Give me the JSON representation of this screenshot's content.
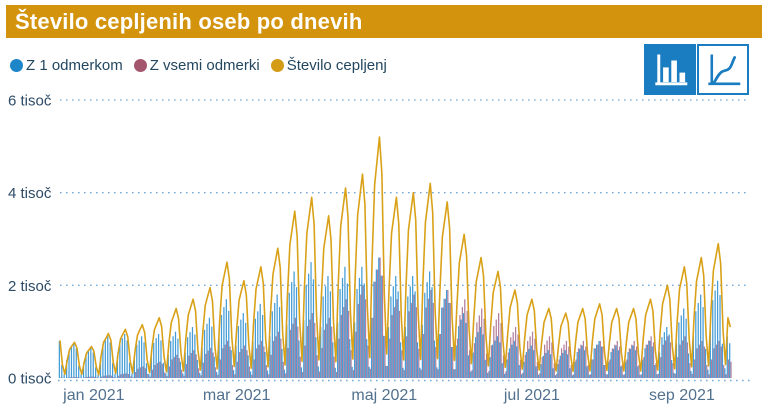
{
  "title": {
    "text": "Število cepljenih oseb po dnevih"
  },
  "legend": {
    "items": [
      {
        "label": "Z 1 odmerkom",
        "color": "#1C86C8"
      },
      {
        "label": "Z vsemi odmerki",
        "color": "#A4566E"
      },
      {
        "label": "Število cepljenj",
        "color": "#D49B15"
      }
    ]
  },
  "toolbar": {
    "buttons": [
      {
        "name": "bar-chart",
        "selected": true
      },
      {
        "name": "line-chart",
        "selected": false
      }
    ]
  },
  "colors": {
    "header_bg": "#D3930C",
    "header_text": "#FFFFFF",
    "grid": "#74A9D8",
    "axis_text": "#2E4B66",
    "month_text": "#51718E",
    "button_blue": "#1B7DC1"
  },
  "chart_data": {
    "type": "bar",
    "title": "Število cepljenih oseb po dnevih",
    "xlabel": "",
    "ylabel": "",
    "ylim": [
      0,
      6000
    ],
    "grid": "dotted-horizontal",
    "legend_position": "top-left",
    "x_start_date": "2021-01-01",
    "x_frequency": "daily",
    "y_ticks": [
      {
        "value": 0,
        "label": "0 tisoč"
      },
      {
        "value": 2000,
        "label": "2 tisoč"
      },
      {
        "value": 4000,
        "label": "4 tisoč"
      },
      {
        "value": 6000,
        "label": "6 tisoč"
      }
    ],
    "x_ticks": [
      {
        "label": "jan 2021",
        "day_index": 14
      },
      {
        "label": "mar 2021",
        "day_index": 73
      },
      {
        "label": "maj 2021",
        "day_index": 134
      },
      {
        "label": "jul 2021",
        "day_index": 195
      },
      {
        "label": "sep 2021",
        "day_index": 257
      }
    ],
    "series": [
      {
        "name": "Z 1 odmerkom",
        "type": "bar",
        "color": "#459CD6",
        "values": [
          800,
          280,
          80,
          380,
          600,
          680,
          750,
          640,
          260,
          80,
          330,
          520,
          590,
          650,
          550,
          230,
          70,
          450,
          720,
          810,
          900,
          770,
          320,
          90,
          480,
          760,
          860,
          950,
          810,
          330,
          100,
          450,
          720,
          810,
          900,
          770,
          320,
          90,
          480,
          760,
          860,
          950,
          810,
          330,
          100,
          500,
          800,
          900,
          1000,
          850,
          350,
          100,
          550,
          880,
          990,
          1100,
          940,
          390,
          110,
          650,
          1040,
          1170,
          1300,
          1110,
          460,
          130,
          850,
          1360,
          1530,
          1700,
          1450,
          600,
          170,
          700,
          1120,
          1260,
          1400,
          1190,
          490,
          140,
          800,
          1280,
          1440,
          1600,
          1360,
          560,
          160,
          900,
          1440,
          1620,
          1800,
          1530,
          630,
          180,
          1150,
          1840,
          2070,
          2300,
          1960,
          810,
          230,
          1250,
          2000,
          2250,
          2500,
          2130,
          880,
          250,
          1100,
          1760,
          1980,
          2200,
          1870,
          770,
          220,
          1200,
          1920,
          2160,
          2400,
          2040,
          840,
          240,
          1200,
          1920,
          2160,
          2400,
          2040,
          840,
          240,
          1300,
          2080,
          2340,
          2600,
          2210,
          910,
          260,
          1100,
          1760,
          1980,
          2200,
          1870,
          770,
          220,
          1100,
          1760,
          1980,
          2200,
          1870,
          770,
          220,
          1150,
          1840,
          2070,
          2300,
          1960,
          810,
          230,
          950,
          1520,
          1710,
          1900,
          1620,
          670,
          190,
          700,
          1120,
          1260,
          1400,
          1190,
          490,
          140,
          550,
          880,
          990,
          1100,
          940,
          390,
          110,
          450,
          720,
          810,
          900,
          770,
          320,
          90,
          400,
          640,
          720,
          800,
          680,
          280,
          80,
          350,
          560,
          630,
          700,
          600,
          250,
          70,
          300,
          480,
          540,
          600,
          510,
          210,
          60,
          300,
          480,
          540,
          600,
          510,
          210,
          60,
          350,
          560,
          630,
          700,
          600,
          250,
          70,
          400,
          640,
          720,
          800,
          680,
          280,
          80,
          350,
          560,
          630,
          700,
          600,
          250,
          70,
          350,
          560,
          630,
          700,
          600,
          250,
          70,
          400,
          640,
          720,
          800,
          680,
          280,
          80,
          550,
          880,
          990,
          1100,
          940,
          390,
          110,
          750,
          1200,
          1350,
          1500,
          1280,
          530,
          150,
          900,
          1440,
          1620,
          1800,
          1530,
          630,
          180,
          1050,
          1680,
          1890,
          2100,
          1790,
          740,
          210,
          900,
          750
        ]
      },
      {
        "name": "Z vsemi odmerki",
        "type": "bar",
        "color": "#B17E9B",
        "values": [
          10,
          5,
          0,
          10,
          16,
          18,
          20,
          17,
          7,
          2,
          15,
          24,
          27,
          30,
          26,
          11,
          3,
          30,
          48,
          54,
          60,
          51,
          21,
          6,
          50,
          80,
          90,
          100,
          85,
          35,
          10,
          130,
          200,
          230,
          250,
          210,
          90,
          30,
          180,
          280,
          320,
          350,
          300,
          120,
          40,
          250,
          400,
          450,
          500,
          430,
          180,
          50,
          300,
          480,
          540,
          600,
          510,
          210,
          60,
          330,
          520,
          590,
          650,
          550,
          230,
          70,
          400,
          640,
          720,
          800,
          680,
          280,
          80,
          350,
          560,
          630,
          700,
          600,
          250,
          70,
          400,
          640,
          720,
          800,
          680,
          280,
          80,
          500,
          800,
          900,
          1000,
          850,
          350,
          100,
          650,
          1040,
          1170,
          1300,
          1110,
          460,
          130,
          700,
          1120,
          1260,
          1400,
          1190,
          490,
          140,
          650,
          1040,
          1170,
          1300,
          1110,
          460,
          130,
          850,
          1360,
          1530,
          1700,
          1450,
          600,
          170,
          1000,
          1600,
          1800,
          2000,
          1700,
          700,
          200,
          1300,
          2080,
          2340,
          2600,
          2210,
          910,
          260,
          850,
          1360,
          1530,
          1700,
          1450,
          600,
          170,
          900,
          1440,
          1620,
          1800,
          1530,
          630,
          180,
          950,
          1520,
          1710,
          1900,
          1620,
          670,
          190,
          950,
          1520,
          1710,
          1900,
          1620,
          670,
          190,
          850,
          1360,
          1530,
          1700,
          1450,
          600,
          170,
          750,
          1200,
          1350,
          1500,
          1280,
          530,
          150,
          700,
          1120,
          1260,
          1400,
          1190,
          490,
          140,
          550,
          880,
          990,
          1100,
          940,
          390,
          110,
          500,
          800,
          900,
          1000,
          850,
          350,
          100,
          450,
          720,
          810,
          900,
          770,
          320,
          90,
          400,
          640,
          720,
          800,
          680,
          280,
          80,
          400,
          640,
          720,
          800,
          680,
          280,
          80,
          400,
          640,
          720,
          800,
          680,
          280,
          80,
          400,
          640,
          720,
          800,
          680,
          280,
          80,
          400,
          640,
          720,
          800,
          680,
          280,
          80,
          450,
          720,
          810,
          900,
          770,
          320,
          90,
          450,
          720,
          810,
          900,
          770,
          320,
          90,
          450,
          720,
          810,
          900,
          770,
          320,
          90,
          400,
          640,
          720,
          800,
          680,
          280,
          80,
          400,
          640,
          720,
          800,
          680,
          280,
          80,
          400,
          350
        ]
      },
      {
        "name": "Število cepljenj",
        "type": "line",
        "color": "#D9A118",
        "values": [
          810,
          290,
          80,
          390,
          620,
          700,
          770,
          650,
          270,
          80,
          340,
          540,
          610,
          680,
          580,
          240,
          70,
          480,
          770,
          860,
          960,
          820,
          340,
          100,
          530,
          840,
          950,
          1050,
          890,
          370,
          110,
          580,
          920,
          1040,
          1150,
          980,
          400,
          120,
          650,
          1040,
          1170,
          1300,
          1110,
          460,
          130,
          750,
          1200,
          1350,
          1500,
          1280,
          530,
          150,
          850,
          1360,
          1530,
          1700,
          1450,
          600,
          170,
          980,
          1560,
          1760,
          1950,
          1660,
          680,
          200,
          1250,
          2000,
          2250,
          2500,
          2130,
          880,
          250,
          1050,
          1680,
          1890,
          2100,
          1790,
          740,
          210,
          1200,
          1920,
          2160,
          2400,
          2040,
          840,
          240,
          1400,
          2240,
          2520,
          2800,
          2380,
          980,
          280,
          1800,
          2880,
          3240,
          3600,
          3060,
          1260,
          360,
          1950,
          3120,
          3510,
          3900,
          3320,
          1370,
          390,
          1750,
          2800,
          3150,
          3500,
          2980,
          1230,
          350,
          2050,
          3280,
          3690,
          4100,
          3490,
          1440,
          410,
          2200,
          3520,
          3960,
          4400,
          3740,
          1540,
          440,
          2600,
          4160,
          4680,
          5200,
          4420,
          1820,
          520,
          1950,
          3120,
          3510,
          3900,
          3320,
          1370,
          390,
          2000,
          3200,
          3600,
          4000,
          3400,
          1400,
          400,
          2100,
          3360,
          3780,
          4200,
          3570,
          1470,
          420,
          1900,
          3040,
          3420,
          3800,
          3230,
          1330,
          380,
          1550,
          2480,
          2790,
          3100,
          2640,
          1090,
          310,
          1300,
          2080,
          2340,
          2600,
          2210,
          910,
          260,
          1150,
          1840,
          2070,
          2300,
          1960,
          810,
          230,
          950,
          1520,
          1710,
          1900,
          1620,
          670,
          190,
          850,
          1360,
          1530,
          1700,
          1450,
          600,
          170,
          750,
          1200,
          1350,
          1500,
          1280,
          530,
          150,
          700,
          1120,
          1260,
          1400,
          1190,
          490,
          140,
          750,
          1200,
          1350,
          1500,
          1280,
          530,
          150,
          800,
          1280,
          1440,
          1600,
          1360,
          560,
          160,
          750,
          1200,
          1350,
          1500,
          1280,
          530,
          150,
          750,
          1200,
          1350,
          1500,
          1280,
          530,
          150,
          850,
          1360,
          1530,
          1700,
          1450,
          600,
          170,
          1000,
          1600,
          1800,
          2000,
          1700,
          700,
          200,
          1200,
          1920,
          2160,
          2400,
          2040,
          840,
          240,
          1300,
          2080,
          2340,
          2600,
          2210,
          910,
          260,
          1450,
          2320,
          2610,
          2900,
          2470,
          1010,
          290,
          1300,
          1100
        ]
      }
    ]
  }
}
